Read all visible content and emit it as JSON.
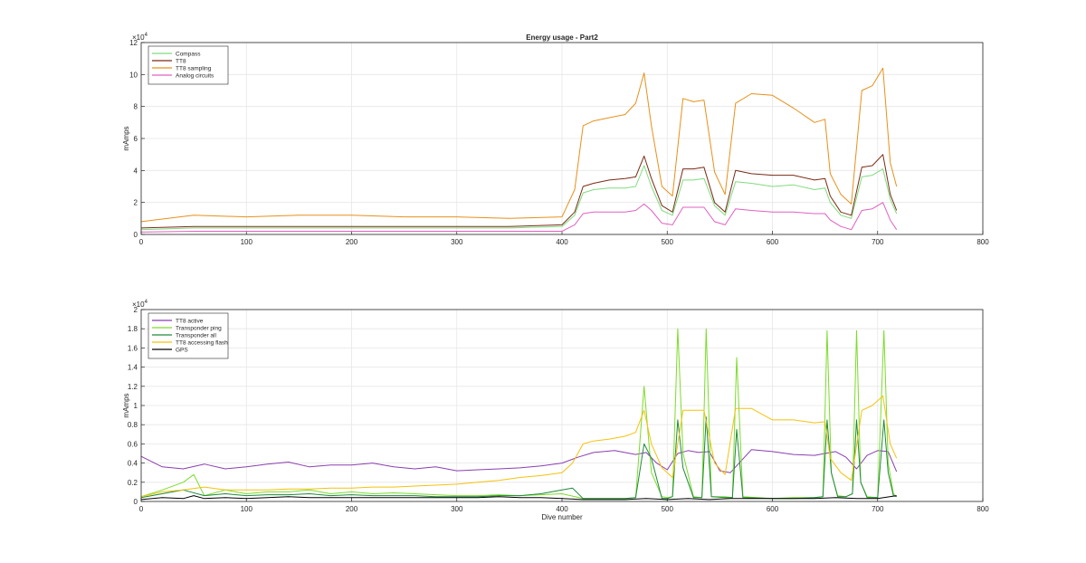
{
  "figure": {
    "background": "#ffffff"
  },
  "chart_data": [
    {
      "type": "line",
      "title": "Energy usage - Part2",
      "xlabel": "",
      "ylabel": "mAmps",
      "y_multiplier": "×10",
      "y_multiplier_exp": "4",
      "xlim": [
        0,
        800
      ],
      "ylim": [
        0,
        12
      ],
      "xticks": [
        "0",
        "100",
        "200",
        "300",
        "400",
        "500",
        "600",
        "700",
        "800"
      ],
      "yticks": [
        "0",
        "2",
        "4",
        "6",
        "8",
        "10",
        "12"
      ],
      "grid": true,
      "legend_position": "top-left",
      "series": [
        {
          "name": "Compass",
          "color": "#7fdc7f",
          "x": [
            0,
            50,
            100,
            150,
            200,
            250,
            300,
            350,
            400,
            412,
            420,
            430,
            445,
            460,
            470,
            478,
            485,
            495,
            505,
            515,
            525,
            535,
            545,
            555,
            565,
            580,
            600,
            620,
            640,
            650,
            655,
            665,
            675,
            685,
            695,
            705,
            712,
            718
          ],
          "values": [
            0.3,
            0.4,
            0.4,
            0.4,
            0.4,
            0.4,
            0.4,
            0.4,
            0.5,
            1.2,
            2.6,
            2.8,
            2.9,
            2.9,
            3.0,
            4.3,
            3.0,
            1.5,
            1.2,
            3.4,
            3.4,
            3.5,
            1.8,
            1.2,
            3.3,
            3.2,
            3.0,
            3.1,
            2.8,
            2.9,
            2.0,
            1.2,
            1.0,
            3.6,
            3.7,
            4.1,
            2.2,
            1.3
          ]
        },
        {
          "name": "TT8",
          "color": "#7a2a14",
          "x": [
            0,
            50,
            100,
            150,
            200,
            250,
            300,
            350,
            400,
            412,
            420,
            430,
            445,
            460,
            470,
            478,
            485,
            495,
            505,
            515,
            525,
            535,
            545,
            555,
            565,
            580,
            600,
            620,
            640,
            650,
            655,
            665,
            675,
            685,
            695,
            705,
            712,
            718
          ],
          "values": [
            0.4,
            0.5,
            0.5,
            0.5,
            0.5,
            0.5,
            0.5,
            0.5,
            0.6,
            1.4,
            3.0,
            3.2,
            3.4,
            3.5,
            3.6,
            4.9,
            3.5,
            1.8,
            1.4,
            4.1,
            4.1,
            4.2,
            2.0,
            1.4,
            4.0,
            3.8,
            3.7,
            3.7,
            3.4,
            3.5,
            2.4,
            1.4,
            1.2,
            4.2,
            4.3,
            5.0,
            2.5,
            1.5
          ]
        },
        {
          "name": "TT8 sampling",
          "color": "#e8901a",
          "x": [
            0,
            50,
            100,
            150,
            200,
            250,
            300,
            350,
            400,
            412,
            420,
            430,
            445,
            460,
            470,
            478,
            485,
            495,
            505,
            515,
            525,
            535,
            545,
            555,
            565,
            580,
            600,
            620,
            640,
            650,
            655,
            665,
            675,
            685,
            695,
            705,
            712,
            718
          ],
          "values": [
            0.8,
            1.2,
            1.1,
            1.2,
            1.2,
            1.1,
            1.1,
            1.0,
            1.1,
            2.8,
            6.8,
            7.1,
            7.3,
            7.5,
            8.2,
            10.1,
            6.8,
            3.0,
            2.4,
            8.5,
            8.3,
            8.4,
            3.9,
            2.5,
            8.2,
            8.8,
            8.7,
            7.9,
            7.0,
            7.2,
            3.8,
            2.5,
            1.9,
            9.0,
            9.3,
            10.4,
            4.5,
            3.0
          ]
        },
        {
          "name": "Analog circuits",
          "color": "#e060c0",
          "x": [
            0,
            50,
            100,
            150,
            200,
            250,
            300,
            350,
            400,
            412,
            420,
            430,
            445,
            460,
            470,
            478,
            485,
            495,
            505,
            515,
            525,
            535,
            545,
            555,
            565,
            580,
            600,
            620,
            640,
            650,
            655,
            665,
            675,
            685,
            695,
            705,
            712,
            718
          ],
          "values": [
            0.15,
            0.2,
            0.2,
            0.2,
            0.2,
            0.2,
            0.2,
            0.2,
            0.2,
            0.6,
            1.3,
            1.4,
            1.4,
            1.4,
            1.5,
            1.9,
            1.5,
            0.7,
            0.6,
            1.7,
            1.7,
            1.7,
            0.8,
            0.6,
            1.6,
            1.5,
            1.4,
            1.4,
            1.3,
            1.3,
            0.9,
            0.5,
            0.3,
            1.5,
            1.6,
            2.0,
            0.9,
            0.3
          ]
        }
      ]
    },
    {
      "type": "line",
      "title": "",
      "xlabel": "Dive number",
      "ylabel": "mAmps",
      "y_multiplier": "×10",
      "y_multiplier_exp": "4",
      "xlim": [
        0,
        800
      ],
      "ylim": [
        0,
        2
      ],
      "xticks": [
        "0",
        "100",
        "200",
        "300",
        "400",
        "500",
        "600",
        "700",
        "800"
      ],
      "yticks": [
        "0",
        "0.2",
        "0.4",
        "0.6",
        "0.8",
        "1",
        "1.2",
        "1.4",
        "1.6",
        "1.8",
        "2"
      ],
      "grid": true,
      "legend_position": "top-left",
      "series": [
        {
          "name": "TT8 active",
          "color": "#8a3fb0",
          "x": [
            0,
            20,
            40,
            60,
            80,
            100,
            120,
            140,
            160,
            180,
            200,
            220,
            240,
            260,
            280,
            300,
            320,
            340,
            360,
            380,
            400,
            415,
            430,
            450,
            470,
            480,
            490,
            500,
            510,
            520,
            530,
            540,
            550,
            560,
            580,
            600,
            620,
            640,
            660,
            670,
            680,
            690,
            700,
            710,
            718
          ],
          "values": [
            0.47,
            0.36,
            0.34,
            0.39,
            0.34,
            0.36,
            0.39,
            0.41,
            0.36,
            0.38,
            0.38,
            0.4,
            0.36,
            0.34,
            0.36,
            0.32,
            0.33,
            0.34,
            0.35,
            0.37,
            0.4,
            0.46,
            0.51,
            0.53,
            0.49,
            0.51,
            0.4,
            0.33,
            0.5,
            0.53,
            0.51,
            0.52,
            0.32,
            0.3,
            0.54,
            0.52,
            0.49,
            0.48,
            0.52,
            0.46,
            0.34,
            0.48,
            0.53,
            0.52,
            0.31
          ]
        },
        {
          "name": "Transponder ping",
          "color": "#7cdc2a",
          "x": [
            0,
            20,
            40,
            50,
            60,
            80,
            100,
            120,
            140,
            160,
            180,
            200,
            220,
            240,
            260,
            280,
            300,
            320,
            340,
            360,
            380,
            400,
            420,
            440,
            460,
            470,
            478,
            485,
            495,
            500,
            505,
            510,
            515,
            525,
            533,
            537,
            542,
            555,
            562,
            566,
            572,
            600,
            620,
            640,
            648,
            652,
            656,
            662,
            670,
            676,
            680,
            684,
            690,
            700,
            706,
            710,
            715,
            718
          ],
          "values": [
            0.05,
            0.12,
            0.2,
            0.28,
            0.06,
            0.12,
            0.08,
            0.1,
            0.1,
            0.12,
            0.08,
            0.1,
            0.08,
            0.09,
            0.08,
            0.07,
            0.06,
            0.06,
            0.07,
            0.06,
            0.07,
            0.08,
            0.03,
            0.03,
            0.03,
            0.04,
            1.2,
            0.3,
            0.05,
            0.04,
            0.05,
            1.8,
            0.5,
            0.05,
            0.04,
            1.8,
            0.05,
            0.05,
            0.04,
            1.5,
            0.05,
            0.03,
            0.04,
            0.04,
            0.05,
            1.78,
            0.3,
            0.06,
            0.05,
            0.08,
            1.78,
            0.2,
            0.05,
            0.04,
            1.78,
            0.4,
            0.08,
            0.05
          ]
        },
        {
          "name": "Transponder all",
          "color": "#1f8a3a",
          "x": [
            0,
            20,
            40,
            60,
            80,
            100,
            120,
            140,
            160,
            180,
            200,
            220,
            240,
            260,
            280,
            300,
            320,
            340,
            360,
            380,
            400,
            410,
            420,
            440,
            460,
            470,
            478,
            485,
            495,
            500,
            505,
            510,
            515,
            525,
            533,
            537,
            542,
            555,
            562,
            566,
            572,
            600,
            620,
            640,
            648,
            652,
            656,
            662,
            670,
            676,
            680,
            684,
            690,
            700,
            706,
            710,
            715,
            718
          ],
          "values": [
            0.04,
            0.08,
            0.12,
            0.06,
            0.08,
            0.06,
            0.07,
            0.07,
            0.08,
            0.06,
            0.07,
            0.06,
            0.06,
            0.06,
            0.05,
            0.05,
            0.05,
            0.06,
            0.06,
            0.08,
            0.12,
            0.14,
            0.03,
            0.03,
            0.03,
            0.04,
            0.6,
            0.45,
            0.03,
            0.03,
            0.05,
            0.85,
            0.35,
            0.04,
            0.04,
            0.88,
            0.05,
            0.04,
            0.04,
            0.75,
            0.04,
            0.03,
            0.03,
            0.04,
            0.05,
            0.85,
            0.3,
            0.05,
            0.05,
            0.08,
            0.85,
            0.2,
            0.04,
            0.04,
            0.85,
            0.3,
            0.06,
            0.05
          ]
        },
        {
          "name": "TT8 accessing flash",
          "color": "#f4c20d",
          "x": [
            0,
            20,
            40,
            60,
            80,
            100,
            120,
            140,
            160,
            180,
            200,
            220,
            240,
            260,
            280,
            300,
            320,
            340,
            360,
            380,
            400,
            410,
            420,
            430,
            445,
            460,
            470,
            478,
            485,
            495,
            505,
            515,
            525,
            535,
            545,
            555,
            565,
            580,
            600,
            620,
            640,
            650,
            655,
            665,
            675,
            685,
            695,
            705,
            712,
            718
          ],
          "values": [
            0.05,
            0.1,
            0.12,
            0.15,
            0.12,
            0.12,
            0.12,
            0.13,
            0.13,
            0.14,
            0.14,
            0.15,
            0.15,
            0.16,
            0.17,
            0.18,
            0.2,
            0.22,
            0.25,
            0.27,
            0.3,
            0.4,
            0.6,
            0.63,
            0.65,
            0.68,
            0.72,
            0.95,
            0.6,
            0.35,
            0.25,
            0.95,
            0.95,
            0.95,
            0.4,
            0.28,
            0.97,
            0.97,
            0.85,
            0.85,
            0.82,
            0.83,
            0.45,
            0.3,
            0.22,
            0.95,
            1.0,
            1.1,
            0.6,
            0.45
          ]
        },
        {
          "name": "GPS",
          "color": "#000000",
          "x": [
            0,
            20,
            40,
            50,
            60,
            80,
            100,
            120,
            140,
            160,
            180,
            200,
            220,
            240,
            260,
            280,
            300,
            320,
            340,
            360,
            380,
            400,
            420,
            440,
            460,
            480,
            500,
            520,
            540,
            560,
            580,
            600,
            620,
            640,
            660,
            680,
            700,
            718
          ],
          "values": [
            0.02,
            0.04,
            0.03,
            0.06,
            0.03,
            0.04,
            0.03,
            0.04,
            0.05,
            0.04,
            0.04,
            0.04,
            0.04,
            0.04,
            0.04,
            0.04,
            0.04,
            0.04,
            0.05,
            0.04,
            0.04,
            0.03,
            0.02,
            0.02,
            0.02,
            0.03,
            0.02,
            0.03,
            0.02,
            0.03,
            0.03,
            0.03,
            0.03,
            0.03,
            0.04,
            0.03,
            0.03,
            0.06
          ]
        }
      ]
    }
  ]
}
